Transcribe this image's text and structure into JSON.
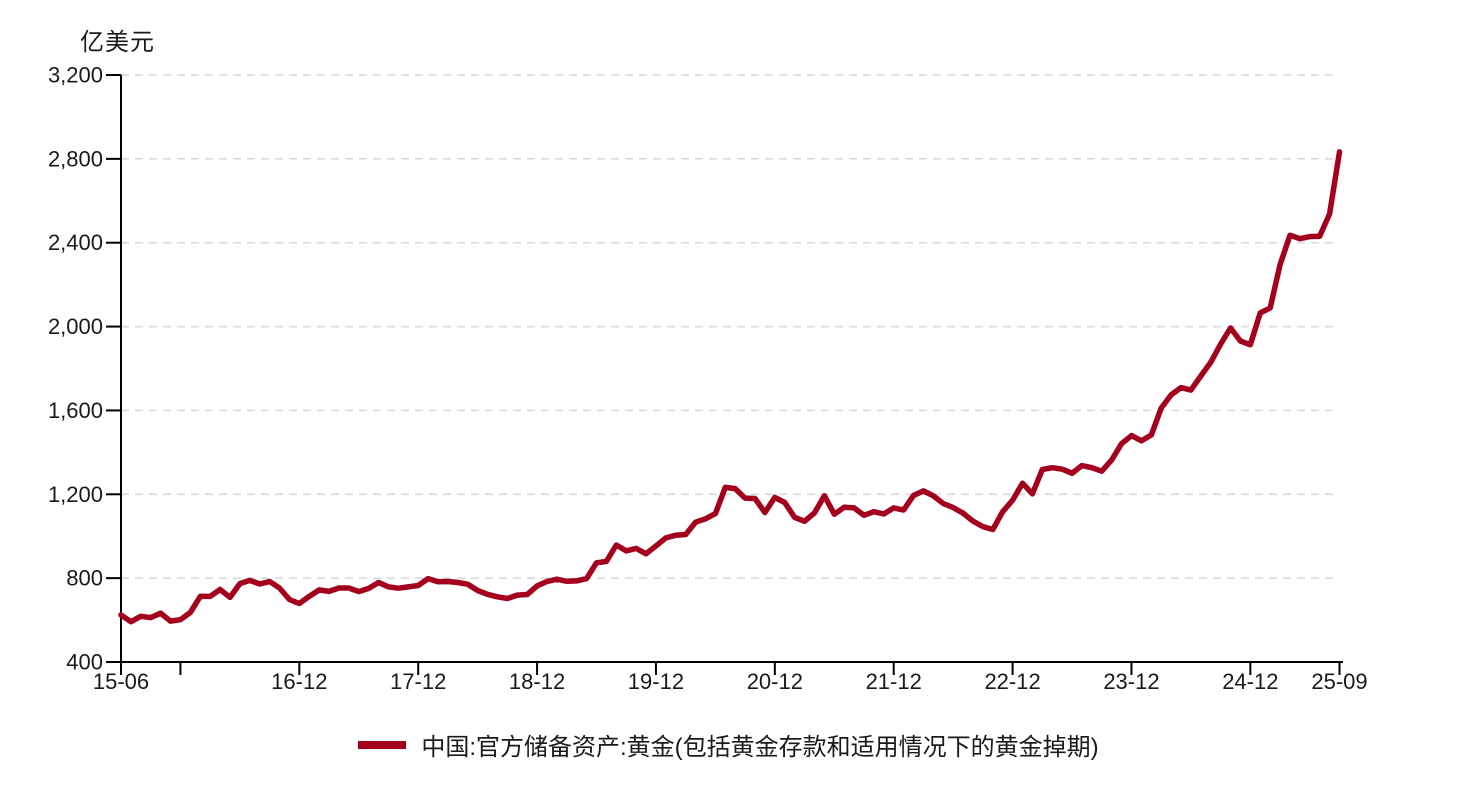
{
  "page": {
    "background": "#FFFFFF"
  },
  "chart_data": {
    "type": "line",
    "title": "",
    "unit_label": "亿美元",
    "xlabel": "",
    "ylabel": "亿美元",
    "ylim": [
      400,
      3200
    ],
    "y_ticks": [
      400,
      800,
      1200,
      1600,
      2000,
      2400,
      2800,
      3200
    ],
    "y_tick_labels": [
      "400",
      "800",
      "1,200",
      "1,600",
      "2,000",
      "2,400",
      "2,800",
      "3,200"
    ],
    "x_axis_ticks": [
      {
        "month": "2015-06",
        "label": "15-06"
      },
      {
        "month": "2015-12",
        "label": ""
      },
      {
        "month": "2016-12",
        "label": "16-12"
      },
      {
        "month": "2017-12",
        "label": "17-12"
      },
      {
        "month": "2018-12",
        "label": "18-12"
      },
      {
        "month": "2019-12",
        "label": "19-12"
      },
      {
        "month": "2020-12",
        "label": "20-12"
      },
      {
        "month": "2021-12",
        "label": "21-12"
      },
      {
        "month": "2022-12",
        "label": "22-12"
      },
      {
        "month": "2023-12",
        "label": "23-12"
      },
      {
        "month": "2024-12",
        "label": "24-12"
      },
      {
        "month": "2025-09",
        "label": "25-09"
      }
    ],
    "grid": {
      "horizontal": true,
      "style": "dashed",
      "color": "#D9D9D9"
    },
    "axis_color": "#000000",
    "text_color": "#1A1A1A",
    "legend_position": "bottom-center",
    "series": [
      {
        "name": "中国:官方储备资产:黄金(包括黄金存款和适用情况下的黄金掉期)",
        "color": "#A4001E",
        "x": [
          "2015-06",
          "2015-07",
          "2015-08",
          "2015-09",
          "2015-10",
          "2015-11",
          "2015-12",
          "2016-01",
          "2016-02",
          "2016-03",
          "2016-04",
          "2016-05",
          "2016-06",
          "2016-07",
          "2016-08",
          "2016-09",
          "2016-10",
          "2016-11",
          "2016-12",
          "2017-01",
          "2017-02",
          "2017-03",
          "2017-04",
          "2017-05",
          "2017-06",
          "2017-07",
          "2017-08",
          "2017-09",
          "2017-10",
          "2017-11",
          "2017-12",
          "2018-01",
          "2018-02",
          "2018-03",
          "2018-04",
          "2018-05",
          "2018-06",
          "2018-07",
          "2018-08",
          "2018-09",
          "2018-10",
          "2018-11",
          "2018-12",
          "2019-01",
          "2019-02",
          "2019-03",
          "2019-04",
          "2019-05",
          "2019-06",
          "2019-07",
          "2019-08",
          "2019-09",
          "2019-10",
          "2019-11",
          "2019-12",
          "2020-01",
          "2020-02",
          "2020-03",
          "2020-04",
          "2020-05",
          "2020-06",
          "2020-07",
          "2020-08",
          "2020-09",
          "2020-10",
          "2020-11",
          "2020-12",
          "2021-01",
          "2021-02",
          "2021-03",
          "2021-04",
          "2021-05",
          "2021-06",
          "2021-07",
          "2021-08",
          "2021-09",
          "2021-10",
          "2021-11",
          "2021-12",
          "2022-01",
          "2022-02",
          "2022-03",
          "2022-04",
          "2022-05",
          "2022-06",
          "2022-07",
          "2022-08",
          "2022-09",
          "2022-10",
          "2022-11",
          "2022-12",
          "2023-01",
          "2023-02",
          "2023-03",
          "2023-04",
          "2023-05",
          "2023-06",
          "2023-07",
          "2023-08",
          "2023-09",
          "2023-10",
          "2023-11",
          "2023-12",
          "2024-01",
          "2024-02",
          "2024-03",
          "2024-04",
          "2024-05",
          "2024-06",
          "2024-07",
          "2024-08",
          "2024-09",
          "2024-10",
          "2024-11",
          "2024-12",
          "2025-01",
          "2025-02",
          "2025-03",
          "2025-04",
          "2025-05",
          "2025-06",
          "2025-07",
          "2025-08",
          "2025-09"
        ],
        "values": [
          624,
          592,
          618,
          612,
          633,
          595,
          602,
          636,
          713,
          713,
          746,
          708,
          774,
          789,
          772,
          784,
          753,
          698,
          679,
          713,
          744,
          737,
          753,
          753,
          736,
          751,
          779,
          758,
          752,
          758,
          765,
          798,
          783,
          784,
          779,
          771,
          741,
          723,
          711,
          703,
          719,
          722,
          763,
          784,
          795,
          785,
          787,
          798,
          873,
          880,
          958,
          930,
          942,
          916,
          954,
          992,
          1005,
          1008,
          1067,
          1083,
          1108,
          1233,
          1227,
          1182,
          1180,
          1113,
          1185,
          1161,
          1090,
          1071,
          1111,
          1193,
          1105,
          1138,
          1135,
          1100,
          1117,
          1106,
          1135,
          1125,
          1194,
          1216,
          1193,
          1156,
          1137,
          1110,
          1072,
          1046,
          1032,
          1117,
          1172,
          1253,
          1202,
          1318,
          1327,
          1320,
          1300,
          1337,
          1327,
          1310,
          1364,
          1442,
          1480,
          1455,
          1483,
          1611,
          1674,
          1709,
          1697,
          1764,
          1829,
          1916,
          1993,
          1931,
          1913,
          2065,
          2089,
          2296,
          2436,
          2419,
          2429,
          2431,
          2538,
          2833
        ]
      }
    ]
  }
}
